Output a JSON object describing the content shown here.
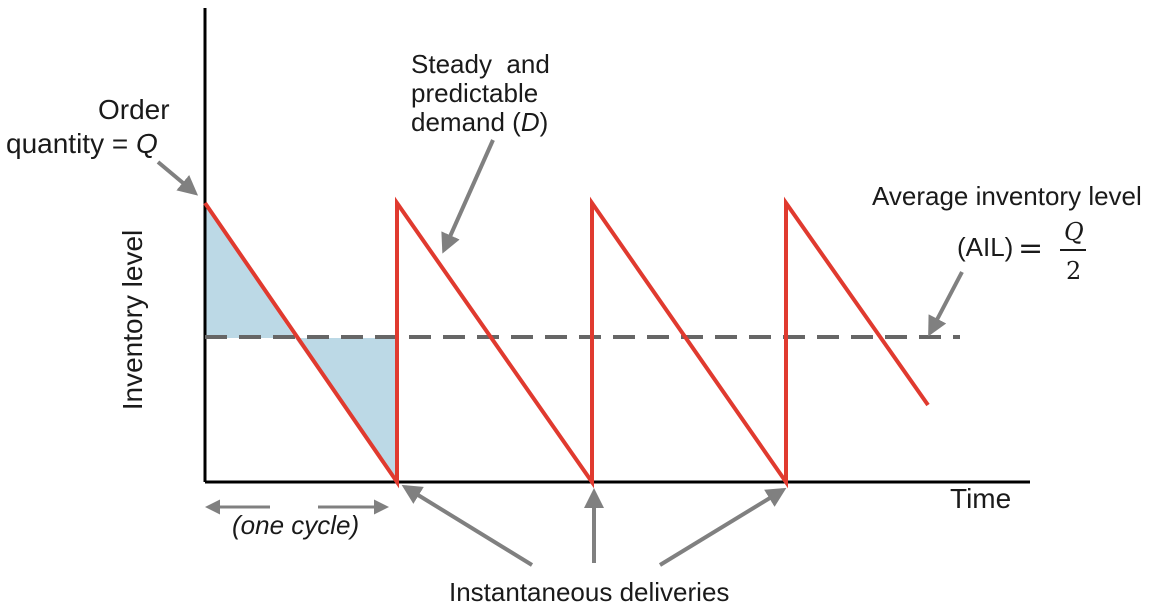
{
  "axes": {
    "y_label": "Inventory level",
    "x_label": "Time"
  },
  "labels": {
    "order_quantity_line1": "Order",
    "order_quantity_line2": "quantity = ",
    "order_quantity_symbol": "Q",
    "demand_line1": "Steady  and",
    "demand_line2": "predictable",
    "demand_line3_prefix": "demand (",
    "demand_symbol": "D",
    "demand_line3_suffix": ")",
    "ail_line1": "Average inventory level",
    "ail_line2_prefix": "(AIL) = ",
    "ail_numerator": "Q",
    "ail_denominator": "2",
    "one_cycle": "(one cycle)",
    "deliveries": "Instantaneous deliveries"
  },
  "colors": {
    "sawtooth": "#e03a2f",
    "average_line": "#666666",
    "shaded_area": "#bcd9e6",
    "arrow": "#808080",
    "axis": "#000000"
  }
}
